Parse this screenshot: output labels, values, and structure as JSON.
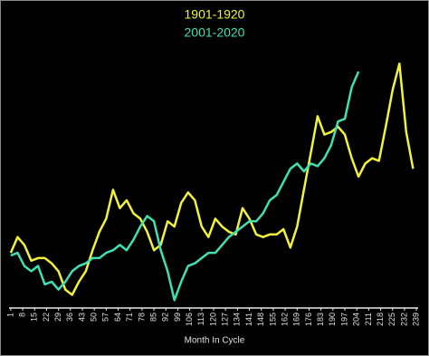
{
  "chart_data": {
    "type": "line",
    "x": [
      1,
      5,
      9,
      13,
      17,
      21,
      25,
      29,
      33,
      37,
      41,
      45,
      49,
      53,
      57,
      61,
      65,
      69,
      73,
      77,
      81,
      85,
      89,
      93,
      97,
      101,
      105,
      109,
      113,
      117,
      121,
      125,
      129,
      133,
      137,
      141,
      145,
      149,
      153,
      157,
      161,
      165,
      169,
      173,
      177,
      181,
      185,
      189,
      193,
      197,
      201,
      205,
      209,
      213,
      217,
      221,
      225,
      229,
      233,
      237
    ],
    "series": [
      {
        "name": "1901-1920",
        "color": "#f2f23a",
        "values": [
          21,
          27,
          24,
          18,
          19,
          19,
          17,
          14,
          7,
          5,
          10,
          14,
          22,
          29,
          34,
          45,
          38,
          41,
          36,
          34,
          29,
          22,
          24,
          33,
          31,
          40,
          44,
          41,
          31,
          27,
          34,
          31,
          29,
          28,
          38,
          34,
          28,
          27,
          28,
          28,
          30,
          23,
          31,
          45,
          59,
          73,
          66,
          67,
          69,
          66,
          57,
          50,
          55,
          57,
          56,
          69,
          83,
          93,
          67,
          53
        ]
      },
      {
        "name": "2001-2020",
        "color": "#3ee0b4",
        "values": [
          20,
          21,
          16,
          14,
          16,
          9,
          10,
          7,
          10,
          14,
          16,
          17,
          19,
          19,
          21,
          22,
          24,
          22,
          26,
          31,
          35,
          33,
          22,
          14,
          3,
          10,
          16,
          17,
          19,
          21,
          21,
          24,
          27,
          29,
          31,
          33,
          33,
          36,
          41,
          43,
          48,
          53,
          55,
          52,
          55,
          54,
          57,
          62,
          71,
          72,
          84,
          90,
          null,
          null,
          null,
          null,
          null,
          null,
          null,
          null
        ]
      }
    ],
    "xlim": [
      0,
      240
    ],
    "xticks": [
      1,
      8,
      15,
      22,
      29,
      36,
      43,
      50,
      57,
      64,
      71,
      78,
      85,
      92,
      99,
      106,
      113,
      120,
      127,
      134,
      141,
      148,
      155,
      162,
      169,
      176,
      183,
      190,
      197,
      204,
      211,
      218,
      225,
      232,
      239
    ],
    "ylim": [
      0,
      100
    ],
    "x_label": "Month In Cycle"
  }
}
